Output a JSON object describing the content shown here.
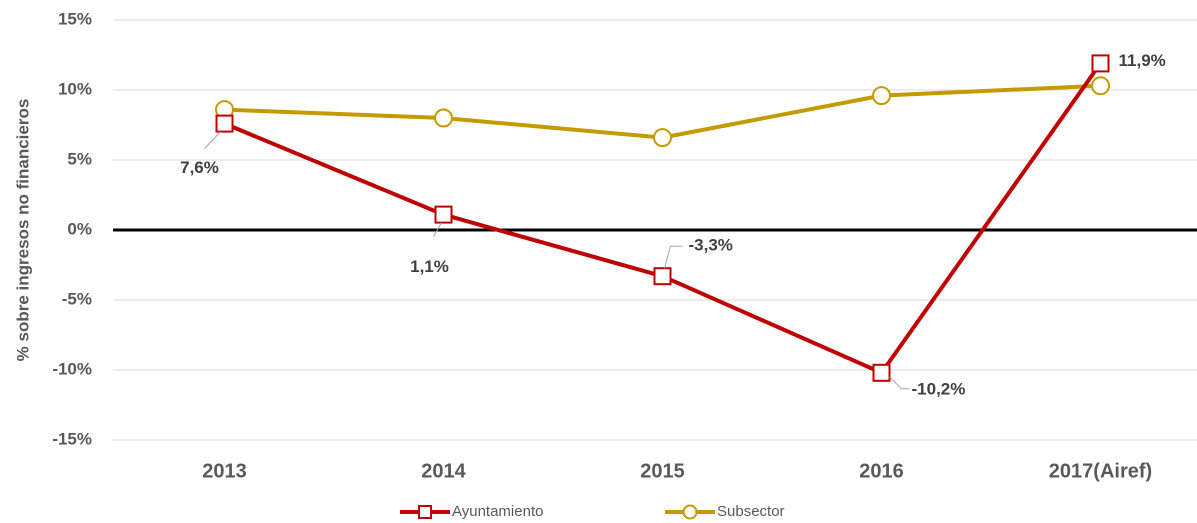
{
  "chart_data": {
    "type": "line",
    "y_label": "% sobre ingresos no financieros",
    "categories": [
      "2013",
      "2014",
      "2015",
      "2016",
      "2017(Airef)"
    ],
    "series": [
      {
        "name": "Ayuntamiento",
        "color": "#c00000",
        "marker": "square",
        "values": [
          7.6,
          1.1,
          -3.3,
          -10.2,
          11.9
        ],
        "value_labels": [
          "7,6%",
          "1,1%",
          "-3,3%",
          "-10,2%",
          "11,9%"
        ]
      },
      {
        "name": "Subsector",
        "color": "#c49a00",
        "marker": "circle",
        "values": [
          8.6,
          8.0,
          6.6,
          9.6,
          10.3
        ]
      }
    ],
    "ylim": [
      -15,
      15
    ],
    "yticks": [
      {
        "value": -15,
        "label": "-15%"
      },
      {
        "value": -10,
        "label": "-10%"
      },
      {
        "value": -5,
        "label": "-5%"
      },
      {
        "value": 0,
        "label": "0%"
      },
      {
        "value": 5,
        "label": "5%"
      },
      {
        "value": 10,
        "label": "10%"
      },
      {
        "value": 15,
        "label": "15%"
      }
    ],
    "grid": true,
    "legend": "bottom"
  }
}
